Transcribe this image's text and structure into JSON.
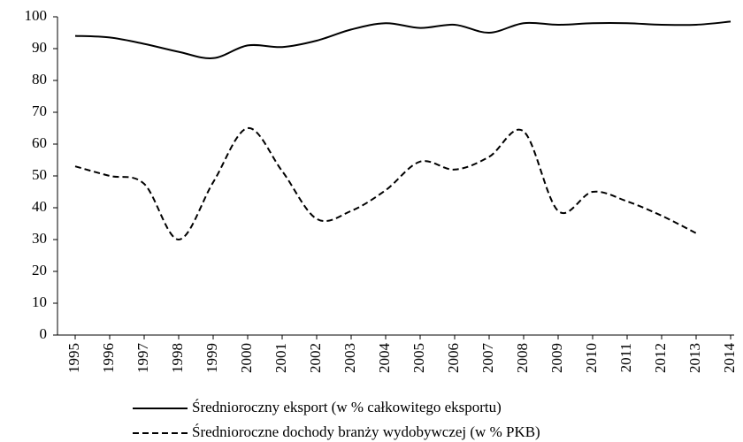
{
  "chart_data": {
    "type": "line",
    "categories": [
      "1995",
      "1996",
      "1997",
      "1998",
      "1999",
      "2000",
      "2001",
      "2002",
      "2003",
      "2004",
      "2005",
      "2006",
      "2007",
      "2008",
      "2009",
      "2010",
      "2011",
      "2012",
      "2013",
      "2014"
    ],
    "series": [
      {
        "name": "Średnioroczny eksport (w % całkowitego eksportu)",
        "color": "#000000",
        "dash": "solid",
        "values": [
          94,
          93.5,
          91.5,
          89,
          87,
          91,
          90.5,
          92.5,
          96,
          98,
          96.5,
          97.5,
          95,
          98,
          97.5,
          98,
          98,
          97.5,
          97.5,
          98.5
        ]
      },
      {
        "name": "Średnioroczne dochody branży wydobywczej (w % PKB)",
        "color": "#000000",
        "dash": "dashed",
        "values": [
          53,
          50,
          47.5,
          30,
          48,
          65,
          51.5,
          36.5,
          39,
          45.5,
          54.5,
          52,
          56,
          64,
          39,
          45,
          42,
          37.5,
          32,
          null
        ]
      }
    ],
    "ylim": [
      0,
      100
    ],
    "yticks": [
      0,
      10,
      20,
      30,
      40,
      50,
      60,
      70,
      80,
      90,
      100
    ],
    "grid": false
  }
}
